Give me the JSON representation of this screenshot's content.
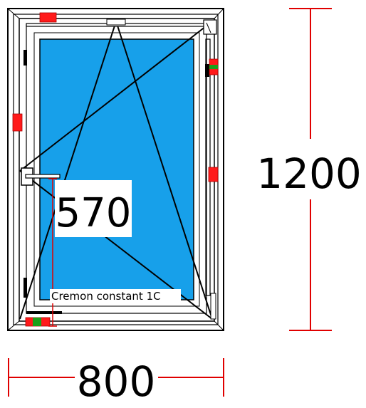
{
  "drawing": {
    "width_value": "800",
    "height_value": "1200",
    "handle_height_value": "570",
    "hardware_label": "Cremon constant 1C"
  },
  "colors": {
    "glass": "#17a0ea",
    "frame_line": "#000000",
    "dimension_line": "#e00000",
    "hardware_red": "#ff1a1a",
    "hardware_green": "#1aa01a"
  }
}
